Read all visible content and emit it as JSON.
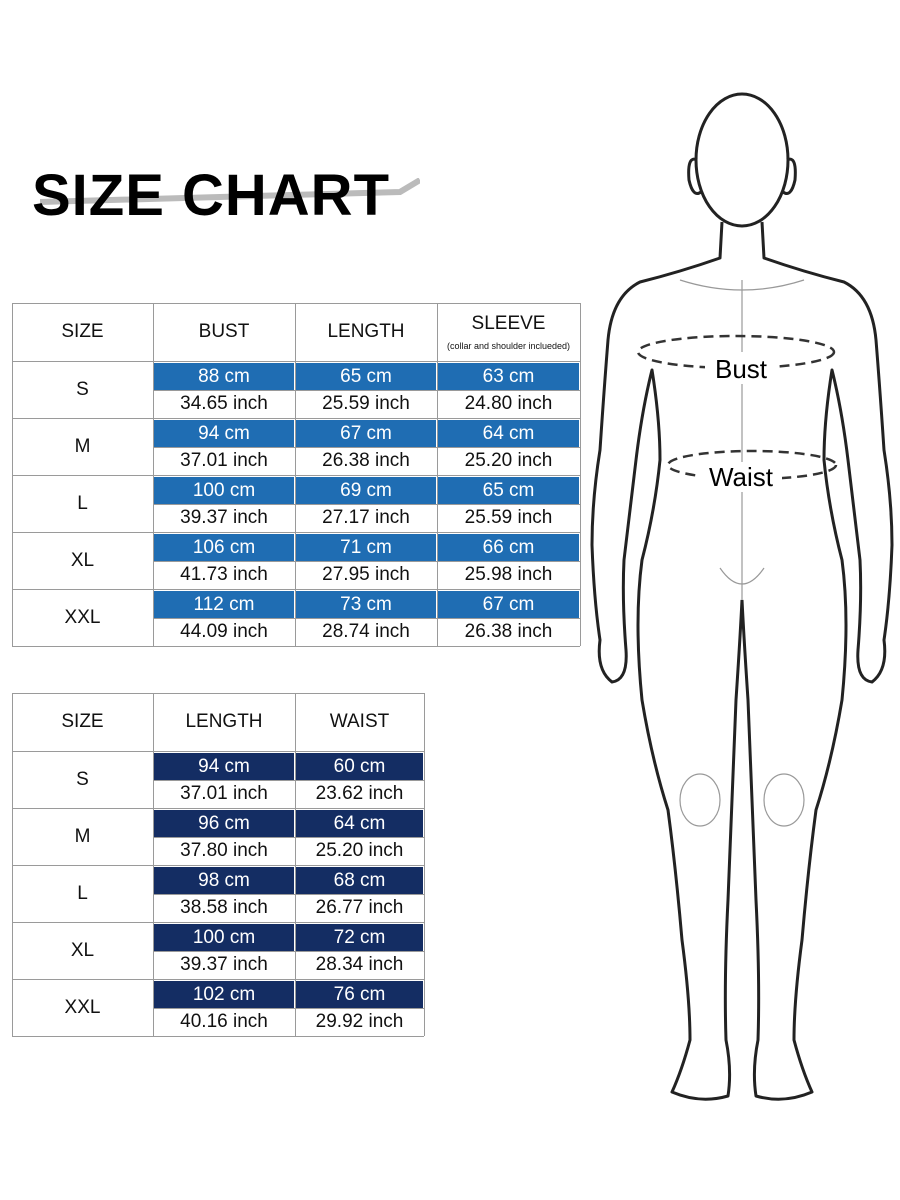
{
  "title": "SIZE CHART",
  "table1": {
    "headers": [
      "SIZE",
      "BUST",
      "LENGTH",
      "SLEEVE"
    ],
    "sleeve_note": "(collar and shoulder inclueded)",
    "rows": [
      {
        "size": "S",
        "cm": [
          "88 cm",
          "65 cm",
          "63 cm"
        ],
        "inch": [
          "34.65 inch",
          "25.59 inch",
          "24.80 inch"
        ]
      },
      {
        "size": "M",
        "cm": [
          "94 cm",
          "67 cm",
          "64 cm"
        ],
        "inch": [
          "37.01 inch",
          "26.38 inch",
          "25.20 inch"
        ]
      },
      {
        "size": "L",
        "cm": [
          "100 cm",
          "69 cm",
          "65 cm"
        ],
        "inch": [
          "39.37 inch",
          "27.17 inch",
          "25.59 inch"
        ]
      },
      {
        "size": "XL",
        "cm": [
          "106 cm",
          "71 cm",
          "66 cm"
        ],
        "inch": [
          "41.73 inch",
          "27.95 inch",
          "25.98 inch"
        ]
      },
      {
        "size": "XXL",
        "cm": [
          "112 cm",
          "73 cm",
          "67 cm"
        ],
        "inch": [
          "44.09 inch",
          "28.74 inch",
          "26.38 inch"
        ]
      }
    ]
  },
  "table2": {
    "headers": [
      "SIZE",
      "LENGTH",
      "WAIST"
    ],
    "rows": [
      {
        "size": "S",
        "cm": [
          "94 cm",
          "60 cm"
        ],
        "inch": [
          "37.01 inch",
          "23.62 inch"
        ]
      },
      {
        "size": "M",
        "cm": [
          "96 cm",
          "64 cm"
        ],
        "inch": [
          "37.80 inch",
          "25.20 inch"
        ]
      },
      {
        "size": "L",
        "cm": [
          "98 cm",
          "68 cm"
        ],
        "inch": [
          "38.58 inch",
          "26.77 inch"
        ]
      },
      {
        "size": "XL",
        "cm": [
          "100 cm",
          "72 cm"
        ],
        "inch": [
          "39.37 inch",
          "28.34 inch"
        ]
      },
      {
        "size": "XXL",
        "cm": [
          "102 cm",
          "76 cm"
        ],
        "inch": [
          "40.16 inch",
          "29.92 inch"
        ]
      }
    ]
  },
  "figure": {
    "bust_label": "Bust",
    "waist_label": "Waist"
  }
}
